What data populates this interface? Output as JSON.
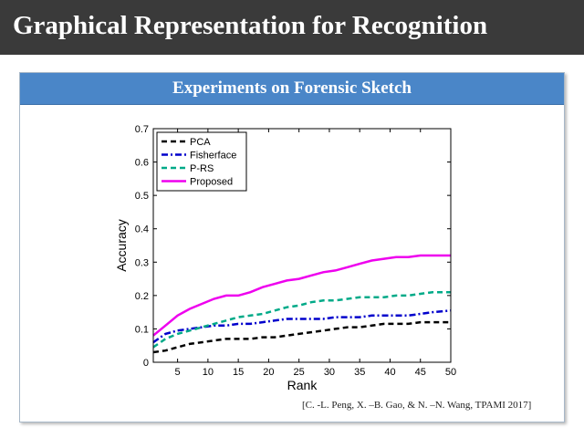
{
  "slide": {
    "title": "Graphical Representation for Recognition",
    "panel_title": "Experiments on Forensic Sketch",
    "citation": "[C. -L. Peng, X. –B. Gao, & N. –N. Wang, TPAMI 2017]",
    "colors": {
      "title_bg": "#3a3a3a",
      "panel_header_bg": "#4a86c8"
    }
  },
  "chart_data": {
    "type": "line",
    "title": "",
    "xlabel": "Rank",
    "ylabel": "Accuracy",
    "xlim": [
      1,
      50
    ],
    "ylim": [
      0,
      0.7
    ],
    "xticks": [
      5,
      10,
      15,
      20,
      25,
      30,
      35,
      40,
      45,
      50
    ],
    "yticks": [
      0,
      0.1,
      0.2,
      0.3,
      0.4,
      0.5,
      0.6,
      0.7
    ],
    "ytick_labels": [
      "0",
      "0.1",
      "0.2",
      "0.3",
      "0.4",
      "0.5",
      "0.6",
      "0.7"
    ],
    "xtick_labels": [
      "5",
      "10",
      "15",
      "20",
      "25",
      "30",
      "35",
      "40",
      "45",
      "50"
    ],
    "grid": false,
    "legend_position": "top-left",
    "x": [
      1,
      3,
      5,
      7,
      9,
      11,
      13,
      15,
      17,
      19,
      21,
      23,
      25,
      27,
      29,
      31,
      33,
      35,
      37,
      39,
      41,
      43,
      45,
      47,
      50
    ],
    "series": [
      {
        "name": "PCA",
        "color": "#000000",
        "dash": "dashed",
        "values": [
          0.03,
          0.035,
          0.045,
          0.055,
          0.06,
          0.065,
          0.07,
          0.07,
          0.07,
          0.075,
          0.075,
          0.08,
          0.085,
          0.09,
          0.095,
          0.1,
          0.105,
          0.105,
          0.11,
          0.115,
          0.115,
          0.115,
          0.12,
          0.12,
          0.12
        ]
      },
      {
        "name": "Fisherface",
        "color": "#0000cc",
        "dash": "dashdot",
        "values": [
          0.06,
          0.085,
          0.095,
          0.1,
          0.105,
          0.11,
          0.11,
          0.115,
          0.115,
          0.12,
          0.125,
          0.13,
          0.13,
          0.13,
          0.13,
          0.135,
          0.135,
          0.135,
          0.14,
          0.14,
          0.14,
          0.14,
          0.145,
          0.15,
          0.155
        ]
      },
      {
        "name": "P-RS",
        "color": "#00aa88",
        "dash": "dashed",
        "values": [
          0.045,
          0.07,
          0.085,
          0.095,
          0.105,
          0.115,
          0.125,
          0.135,
          0.14,
          0.145,
          0.155,
          0.165,
          0.17,
          0.18,
          0.185,
          0.185,
          0.19,
          0.195,
          0.195,
          0.195,
          0.2,
          0.2,
          0.205,
          0.21,
          0.21
        ]
      },
      {
        "name": "Proposed",
        "color": "#ee00ee",
        "dash": "solid",
        "values": [
          0.08,
          0.11,
          0.14,
          0.16,
          0.175,
          0.19,
          0.2,
          0.2,
          0.21,
          0.225,
          0.235,
          0.245,
          0.25,
          0.26,
          0.27,
          0.275,
          0.285,
          0.295,
          0.305,
          0.31,
          0.315,
          0.315,
          0.32,
          0.32,
          0.32
        ]
      }
    ]
  }
}
